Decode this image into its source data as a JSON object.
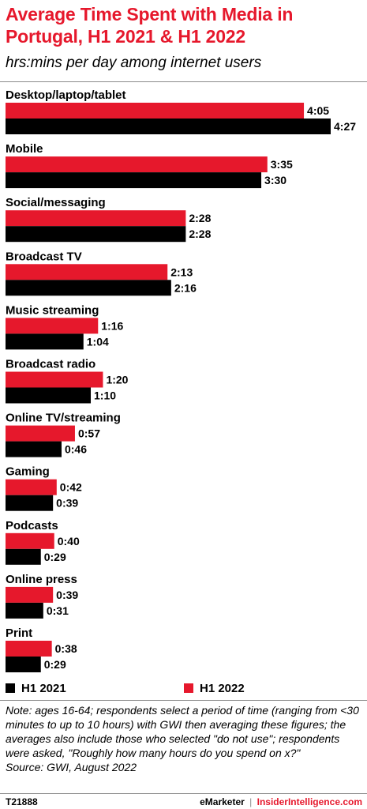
{
  "header": {
    "title": "Average Time Spent with Media in Portugal, H1 2021 & H1 2022",
    "subtitle": "hrs:mins per day among internet users"
  },
  "colors": {
    "h1_2022": "#e6182c",
    "h1_2021": "#000000",
    "title": "#e6182c"
  },
  "chart_data": {
    "type": "bar",
    "orientation": "horizontal",
    "title": "Average Time Spent with Media in Portugal, H1 2021 & H1 2022",
    "subtitle": "hrs:mins per day among internet users",
    "categories": [
      "Desktop/laptop/tablet",
      "Mobile",
      "Social/messaging",
      "Broadcast TV",
      "Music streaming",
      "Broadcast radio",
      "Online TV/streaming",
      "Gaming",
      "Podcasts",
      "Online press",
      "Print"
    ],
    "unit": "minutes",
    "series": [
      {
        "name": "H1 2022",
        "color": "#e6182c",
        "values": [
          245,
          215,
          148,
          133,
          76,
          80,
          57,
          42,
          40,
          39,
          38
        ],
        "labels": [
          "4:05",
          "3:35",
          "2:28",
          "2:13",
          "1:16",
          "1:20",
          "0:57",
          "0:42",
          "0:40",
          "0:39",
          "0:38"
        ]
      },
      {
        "name": "H1 2021",
        "color": "#000000",
        "values": [
          267,
          210,
          148,
          136,
          64,
          70,
          46,
          39,
          29,
          31,
          29
        ],
        "labels": [
          "4:27",
          "3:30",
          "2:28",
          "2:16",
          "1:04",
          "1:10",
          "0:46",
          "0:39",
          "0:29",
          "0:31",
          "0:29"
        ]
      }
    ],
    "legend_placement": "bottom",
    "grid": false
  },
  "legend": {
    "h1_2021": "H1 2021",
    "h1_2022": "H1 2022"
  },
  "note": "Note: ages 16-64; respondents select a period of time (ranging from <30 minutes to up to 10 hours) with GWI then averaging these figures; the averages also include those who selected \"do not use\"; respondents were asked, \"Roughly how many hours do you spend on x?\"",
  "source": "Source:  GWI, August 2022",
  "footer": {
    "id": "T21888",
    "brand1": "eMarketer",
    "separator": "|",
    "brand2": "InsiderIntelligence.com"
  }
}
